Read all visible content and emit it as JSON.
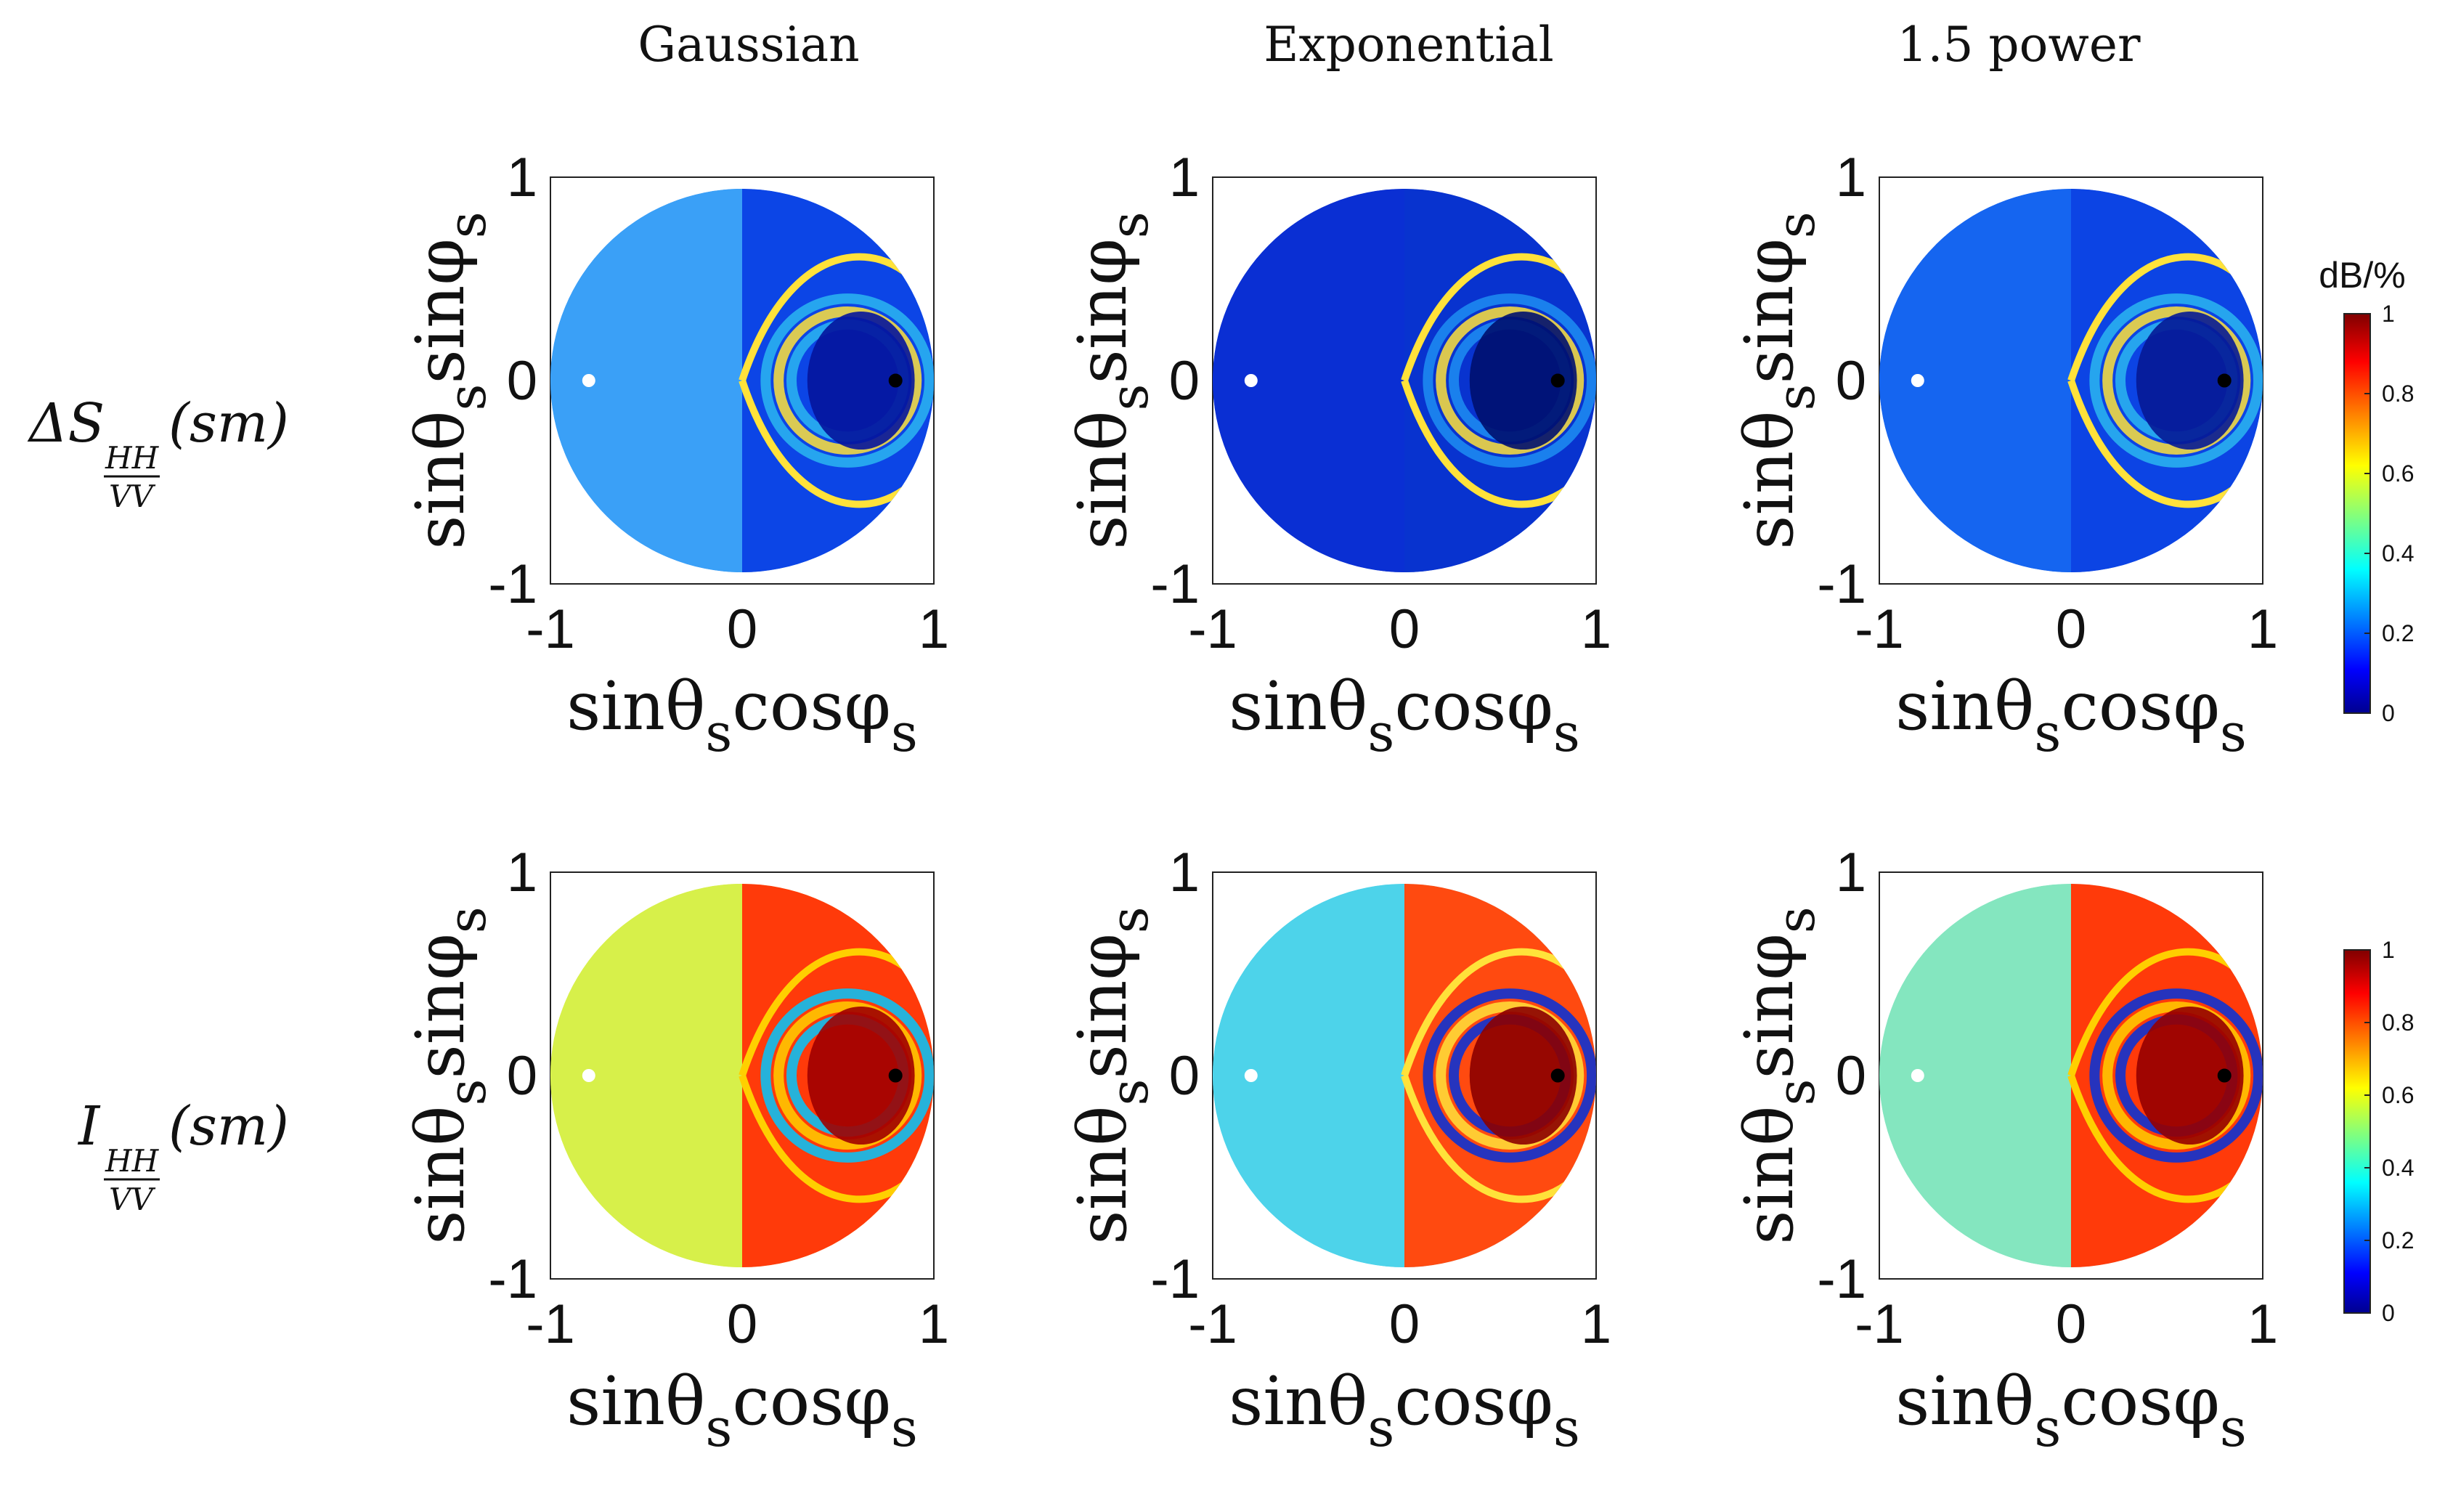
{
  "figure": {
    "column_titles": [
      "Gaussian",
      "Exponential",
      "1.5 power"
    ],
    "row_labels": [
      {
        "base": "ΔS",
        "sub": "HH",
        "den": "VV",
        "arg": "(sm)"
      },
      {
        "base": "I",
        "sub": "HH",
        "den": "VV",
        "arg": "(sm)"
      }
    ]
  },
  "chart_data": [
    {
      "type": "heatmap",
      "row": 0,
      "col": 0,
      "column_title": "Gaussian",
      "row_label": "ΔS HH/VV (sm)",
      "xlabel": "sinθscosφs",
      "ylabel": "sinθssinφs",
      "xlim": [
        -1,
        1
      ],
      "ylim": [
        -1,
        1
      ],
      "xticks": [
        "-1",
        "0",
        "1"
      ],
      "yticks": [
        "-1",
        "0",
        "1"
      ],
      "color_range": [
        0,
        1
      ],
      "markers": [
        {
          "x": -0.8,
          "y": 0,
          "color": "white"
        },
        {
          "x": 0.8,
          "y": 0,
          "color": "black"
        }
      ]
    },
    {
      "type": "heatmap",
      "row": 0,
      "col": 1,
      "column_title": "Exponential",
      "row_label": "ΔS HH/VV (sm)",
      "xlabel": "sinθscosφs",
      "ylabel": "sinθssinφs",
      "xlim": [
        -1,
        1
      ],
      "ylim": [
        -1,
        1
      ],
      "xticks": [
        "-1",
        "0",
        "1"
      ],
      "yticks": [
        "-1",
        "0",
        "1"
      ],
      "color_range": [
        0,
        1
      ],
      "markers": [
        {
          "x": -0.8,
          "y": 0,
          "color": "white"
        },
        {
          "x": 0.8,
          "y": 0,
          "color": "black"
        }
      ]
    },
    {
      "type": "heatmap",
      "row": 0,
      "col": 2,
      "column_title": "1.5 power",
      "row_label": "ΔS HH/VV (sm)",
      "xlabel": "sinθscosφs",
      "ylabel": "sinθssinφs",
      "xlim": [
        -1,
        1
      ],
      "ylim": [
        -1,
        1
      ],
      "xticks": [
        "-1",
        "0",
        "1"
      ],
      "yticks": [
        "-1",
        "0",
        "1"
      ],
      "color_range": [
        0,
        1
      ],
      "markers": [
        {
          "x": -0.8,
          "y": 0,
          "color": "white"
        },
        {
          "x": 0.8,
          "y": 0,
          "color": "black"
        }
      ]
    },
    {
      "type": "heatmap",
      "row": 1,
      "col": 0,
      "column_title": "Gaussian",
      "row_label": "I HH/VV (sm)",
      "xlabel": "sinθscosφs",
      "ylabel": "sinθssinφs",
      "xlim": [
        -1,
        1
      ],
      "ylim": [
        -1,
        1
      ],
      "xticks": [
        "-1",
        "0",
        "1"
      ],
      "yticks": [
        "-1",
        "0",
        "1"
      ],
      "color_range": [
        0,
        1
      ],
      "markers": [
        {
          "x": -0.8,
          "y": 0,
          "color": "white"
        },
        {
          "x": 0.8,
          "y": 0,
          "color": "black"
        }
      ]
    },
    {
      "type": "heatmap",
      "row": 1,
      "col": 1,
      "column_title": "Exponential",
      "row_label": "I HH/VV (sm)",
      "xlabel": "sinθscosφs",
      "ylabel": "sinθssinφs",
      "xlim": [
        -1,
        1
      ],
      "ylim": [
        -1,
        1
      ],
      "xticks": [
        "-1",
        "0",
        "1"
      ],
      "yticks": [
        "-1",
        "0",
        "1"
      ],
      "color_range": [
        0,
        1
      ],
      "markers": [
        {
          "x": -0.8,
          "y": 0,
          "color": "white"
        },
        {
          "x": 0.8,
          "y": 0,
          "color": "black"
        }
      ]
    },
    {
      "type": "heatmap",
      "row": 1,
      "col": 2,
      "column_title": "1.5 power",
      "row_label": "I HH/VV (sm)",
      "xlabel": "sinθscosφs",
      "ylabel": "sinθssinφs",
      "xlim": [
        -1,
        1
      ],
      "ylim": [
        -1,
        1
      ],
      "xticks": [
        "-1",
        "0",
        "1"
      ],
      "yticks": [
        "-1",
        "0",
        "1"
      ],
      "color_range": [
        0,
        1
      ],
      "markers": [
        {
          "x": -0.8,
          "y": 0,
          "color": "white"
        },
        {
          "x": 0.8,
          "y": 0,
          "color": "black"
        }
      ]
    }
  ],
  "colorbars": [
    {
      "row": 0,
      "title": "dB/%",
      "ticks": [
        "0",
        "0.2",
        "0.4",
        "0.6",
        "0.8",
        "1"
      ],
      "range": [
        0,
        1
      ]
    },
    {
      "row": 1,
      "title": "",
      "ticks": [
        "0",
        "0.2",
        "0.4",
        "0.6",
        "0.8",
        "1"
      ],
      "range": [
        0,
        1
      ]
    }
  ],
  "colors": {
    "jet": [
      "#00008f",
      "#0000ff",
      "#00ffff",
      "#ffff00",
      "#ff0000",
      "#800000"
    ]
  }
}
